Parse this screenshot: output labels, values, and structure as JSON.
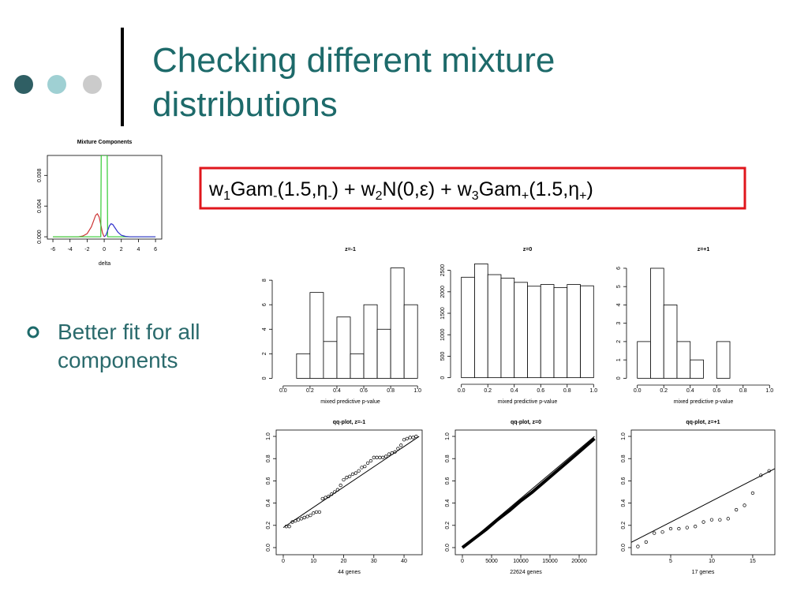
{
  "title": [
    "Checking different mixture",
    "distributions"
  ],
  "formula": [
    {
      "text": "w"
    },
    {
      "sub": "1"
    },
    {
      "text": "Gam"
    },
    {
      "sub": "-"
    },
    {
      "text": "(1.5,η"
    },
    {
      "sub": "-"
    },
    {
      "text": ") + w"
    },
    {
      "sub": "2"
    },
    {
      "text": "N(0,ε) + w"
    },
    {
      "sub": "3"
    },
    {
      "text": "Gam"
    },
    {
      "sub": "+"
    },
    {
      "text": "(1.5,η"
    },
    {
      "sub": "+"
    },
    {
      "text": ")"
    }
  ],
  "bullet": [
    "Better fit for all",
    "components"
  ],
  "chart_data": [
    {
      "type": "line",
      "title": "Mixture Components",
      "x_label": "delta",
      "xlim": [
        -6.65,
        6.73
      ],
      "xticks": [
        -6,
        -4,
        -2,
        0,
        2,
        4,
        6
      ],
      "ylim": [
        -0.0003,
        0.0106
      ],
      "yticks": [
        {
          "value": 0,
          "label": "0.000"
        },
        {
          "value": 0.004,
          "label": "0.004"
        },
        {
          "value": 0.008,
          "label": "0.008"
        }
      ],
      "series": [
        {
          "color": "#cc3333",
          "x": [
            -6,
            -3,
            -2.5,
            -2,
            -1.5,
            -1.2,
            -1,
            -0.8,
            -0.6,
            -0.4,
            -0.2,
            0
          ],
          "values": [
            0,
            0,
            0.0001,
            0.0004,
            0.0013,
            0.0022,
            0.0028,
            0.003,
            0.0026,
            0.0016,
            0.0005,
            0
          ]
        },
        {
          "color": "#33cc33",
          "x": [
            -6,
            -0.4,
            -0.35,
            0.35,
            0.4,
            6
          ],
          "values": [
            0,
            0,
            0.0106,
            0.0106,
            0,
            0
          ]
        },
        {
          "color": "#3333cc",
          "x": [
            0,
            0.2,
            0.4,
            0.6,
            0.8,
            1,
            1.3,
            1.6,
            2,
            2.5,
            3,
            6
          ],
          "values": [
            0,
            0.0002,
            0.0008,
            0.0014,
            0.0017,
            0.0016,
            0.0011,
            0.0006,
            0.0002,
            5e-05,
            0,
            0
          ]
        }
      ]
    },
    {
      "type": "histogram",
      "title": "z=-1",
      "x_label": "mixed predictive p-value",
      "bins": [
        0.1,
        0.2,
        0.3,
        0.4,
        0.5,
        0.6,
        0.7,
        0.8,
        0.9,
        1.0
      ],
      "values": [
        2,
        7,
        3,
        5,
        2,
        6,
        4,
        9,
        6
      ],
      "xlim": [
        -0.04,
        1.04
      ],
      "xticks": [
        {
          "value": 0,
          "label": "0.0"
        },
        {
          "value": 0.2,
          "label": "0.2"
        },
        {
          "value": 0.4,
          "label": "0.4"
        },
        {
          "value": 0.6,
          "label": "0.6"
        },
        {
          "value": 0.8,
          "label": "0.8"
        },
        {
          "value": 1,
          "label": "1.0"
        }
      ],
      "ylim": [
        -0.36,
        9.36
      ],
      "yticks": [
        0,
        2,
        4,
        6,
        8
      ]
    },
    {
      "type": "histogram",
      "title": "z=0",
      "x_label": "mixed predictive p-value",
      "bins": [
        0,
        0.1,
        0.2,
        0.3,
        0.4,
        0.5,
        0.6,
        0.7,
        0.8,
        0.9,
        1.0
      ],
      "values": [
        2340,
        2650,
        2400,
        2320,
        2220,
        2130,
        2170,
        2100,
        2170,
        2140
      ],
      "xlim": [
        -0.04,
        1.04
      ],
      "xticks": [
        {
          "value": 0,
          "label": "0.0"
        },
        {
          "value": 0.2,
          "label": "0.2"
        },
        {
          "value": 0.4,
          "label": "0.4"
        },
        {
          "value": 0.6,
          "label": "0.6"
        },
        {
          "value": 0.8,
          "label": "0.8"
        },
        {
          "value": 1,
          "label": "1.0"
        }
      ],
      "ylim": [
        -80,
        2750
      ],
      "yticks": [
        0,
        500,
        1000,
        1500,
        2000,
        2500
      ]
    },
    {
      "type": "histogram",
      "title": "z=+1",
      "x_label": "mixed predictive p-value",
      "bins": [
        0,
        0.1,
        0.2,
        0.3,
        0.4,
        0.5,
        0.6,
        0.7,
        0.8,
        0.9,
        1.0
      ],
      "values": [
        2,
        6,
        4,
        2,
        1,
        0,
        2,
        0,
        0,
        0
      ],
      "xlim": [
        -0.04,
        1.04
      ],
      "xticks": [
        {
          "value": 0,
          "label": "0.0"
        },
        {
          "value": 0.2,
          "label": "0.2"
        },
        {
          "value": 0.4,
          "label": "0.4"
        },
        {
          "value": 0.6,
          "label": "0.6"
        },
        {
          "value": 0.8,
          "label": "0.8"
        },
        {
          "value": 1,
          "label": "1.0"
        }
      ],
      "ylim": [
        -0.2,
        6.3
      ],
      "yticks": [
        0,
        1,
        2,
        3,
        4,
        5,
        6
      ]
    },
    {
      "type": "scatter",
      "title": "qq-plot, z=-1",
      "x_label": "44  genes",
      "points": {
        "x": [
          1,
          2,
          3,
          4,
          5,
          6,
          7,
          8,
          9,
          10,
          11,
          12,
          13,
          14,
          15,
          16,
          17,
          18,
          19,
          20,
          21,
          22,
          23,
          24,
          25,
          26,
          27,
          28,
          29,
          30,
          31,
          32,
          33,
          34,
          35,
          36,
          37,
          38,
          39,
          40,
          41,
          42,
          43,
          44
        ],
        "values": [
          0.19,
          0.19,
          0.23,
          0.24,
          0.25,
          0.26,
          0.27,
          0.28,
          0.29,
          0.31,
          0.32,
          0.32,
          0.44,
          0.45,
          0.46,
          0.48,
          0.5,
          0.52,
          0.56,
          0.61,
          0.63,
          0.64,
          0.66,
          0.67,
          0.69,
          0.72,
          0.73,
          0.76,
          0.78,
          0.81,
          0.81,
          0.81,
          0.81,
          0.82,
          0.84,
          0.85,
          0.86,
          0.89,
          0.92,
          0.97,
          0.98,
          0.99,
          0.99,
          1.0
        ]
      },
      "ref_line": {
        "x": [
          0,
          45
        ],
        "values": [
          0.18,
          1.0
        ]
      },
      "xlim": [
        -2.35,
        46
      ],
      "xticks": [
        0,
        10,
        20,
        30,
        40
      ],
      "ylim": [
        -0.064,
        1.057
      ],
      "yticks": [
        {
          "value": 0,
          "label": "0.0"
        },
        {
          "value": 0.2,
          "label": "0.2"
        },
        {
          "value": 0.4,
          "label": "0.4"
        },
        {
          "value": 0.6,
          "label": "0.6"
        },
        {
          "value": 0.8,
          "label": "0.8"
        },
        {
          "value": 1,
          "label": "1.0"
        }
      ]
    },
    {
      "type": "scatter",
      "title": "qq-plot, z=0",
      "x_label": "22624  genes",
      "curve": {
        "x": [
          0,
          2000,
          4000,
          6000,
          8000,
          10000,
          12000,
          14000,
          16000,
          18000,
          20000,
          22624
        ],
        "values": [
          0,
          0.08,
          0.16,
          0.25,
          0.33,
          0.42,
          0.5,
          0.59,
          0.68,
          0.77,
          0.86,
          0.98
        ]
      },
      "ref_line": {
        "x": [
          0,
          22624
        ],
        "values": [
          0,
          1.0
        ]
      },
      "xlim": [
        -1216,
        22973
      ],
      "xticks": [
        0,
        5000,
        10000,
        15000,
        20000
      ],
      "ylim": [
        -0.064,
        1.057
      ],
      "yticks": [
        {
          "value": 0,
          "label": "0.0"
        },
        {
          "value": 0.2,
          "label": "0.2"
        },
        {
          "value": 0.4,
          "label": "0.4"
        },
        {
          "value": 0.6,
          "label": "0.6"
        },
        {
          "value": 0.8,
          "label": "0.8"
        },
        {
          "value": 1,
          "label": "1.0"
        }
      ]
    },
    {
      "type": "scatter",
      "title": "qq-plot, z=+1",
      "x_label": "17  genes",
      "points": {
        "x": [
          1,
          2,
          3,
          4,
          5,
          6,
          7,
          8,
          9,
          10,
          11,
          12,
          13,
          14,
          15,
          16,
          17
        ],
        "values": [
          0.01,
          0.05,
          0.13,
          0.14,
          0.17,
          0.17,
          0.18,
          0.19,
          0.23,
          0.25,
          0.25,
          0.26,
          0.34,
          0.38,
          0.49,
          0.65,
          0.69
        ]
      },
      "ref_line": {
        "x": [
          0,
          17.7
        ],
        "values": [
          0.04,
          0.71
        ]
      },
      "xlim": [
        0.19,
        17.7
      ],
      "xticks": [
        5,
        10,
        15
      ],
      "ylim": [
        -0.064,
        1.057
      ],
      "yticks": [
        {
          "value": 0,
          "label": "0.0"
        },
        {
          "value": 0.2,
          "label": "0.2"
        },
        {
          "value": 0.4,
          "label": "0.4"
        },
        {
          "value": 0.6,
          "label": "0.6"
        },
        {
          "value": 0.8,
          "label": "0.8"
        },
        {
          "value": 1,
          "label": "1.0"
        }
      ]
    }
  ]
}
